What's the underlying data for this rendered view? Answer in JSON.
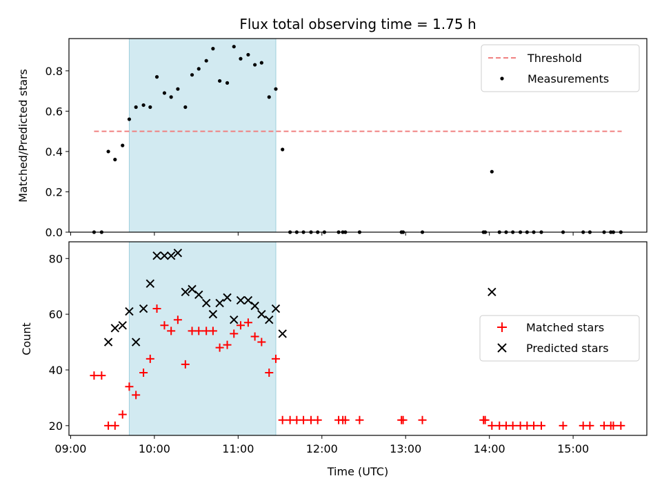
{
  "figure_title": "Flux total observing time = 1.75 h",
  "xlabel": "Time (UTC)",
  "x_ticks": [
    {
      "hours": 9,
      "label": "09:00"
    },
    {
      "hours": 10,
      "label": "10:00"
    },
    {
      "hours": 11,
      "label": "11:00"
    },
    {
      "hours": 12,
      "label": "12:00"
    },
    {
      "hours": 13,
      "label": "13:00"
    },
    {
      "hours": 14,
      "label": "14:00"
    },
    {
      "hours": 15,
      "label": "15:00"
    }
  ],
  "x_range_hours": [
    8.98,
    15.88
  ],
  "colors": {
    "threshold": "#f08080",
    "measurements": "#000000",
    "matched": "#ff0000",
    "predicted": "#000000",
    "highlight": "#add8e6"
  },
  "chart_data": [
    {
      "type": "scatter",
      "ylabel": "Matched/Predicted stars",
      "ylim": [
        0,
        0.96
      ],
      "y_ticks": [
        0.0,
        0.2,
        0.4,
        0.6,
        0.8
      ],
      "y_tick_labels": [
        "0.0",
        "0.2",
        "0.4",
        "0.6",
        "0.8"
      ],
      "highlight_span_hours": [
        9.7,
        11.45
      ],
      "legend_position": "top-right",
      "threshold": {
        "name": "Threshold",
        "y": 0.5,
        "x_start_hours": 9.28,
        "x_end_hours": 15.58
      },
      "series": [
        {
          "name": "Measurements",
          "x_hours": [
            9.28,
            9.37,
            9.45,
            9.53,
            9.62,
            9.7,
            9.78,
            9.87,
            9.95,
            10.03,
            10.12,
            10.2,
            10.28,
            10.37,
            10.45,
            10.53,
            10.62,
            10.7,
            10.78,
            10.87,
            10.95,
            11.03,
            11.12,
            11.2,
            11.28,
            11.37,
            11.45,
            11.53,
            11.62,
            11.7,
            11.78,
            11.87,
            11.95,
            12.03,
            12.2,
            12.25,
            12.28,
            12.45,
            12.95,
            12.97,
            13.2,
            13.93,
            13.95,
            14.03,
            14.12,
            14.2,
            14.28,
            14.37,
            14.45,
            14.53,
            14.62,
            14.88,
            15.12,
            15.2,
            15.37,
            15.45,
            15.48,
            15.57
          ],
          "y": [
            0.0,
            0.0,
            0.4,
            0.36,
            0.43,
            0.56,
            0.62,
            0.63,
            0.62,
            0.77,
            0.69,
            0.67,
            0.71,
            0.62,
            0.78,
            0.81,
            0.85,
            0.91,
            0.75,
            0.74,
            0.92,
            0.86,
            0.88,
            0.83,
            0.84,
            0.67,
            0.71,
            0.41,
            0.0,
            0.0,
            0.0,
            0.0,
            0.0,
            0.0,
            0.0,
            0.0,
            0.0,
            0.0,
            0.0,
            0.0,
            0.0,
            0.0,
            0.0,
            0.3,
            0.0,
            0.0,
            0.0,
            0.0,
            0.0,
            0.0,
            0.0,
            0.0,
            0.0,
            0.0,
            0.0,
            0.0,
            0.0,
            0.0
          ]
        }
      ]
    },
    {
      "type": "scatter",
      "ylabel": "Count",
      "ylim": [
        16.5,
        86
      ],
      "y_ticks": [
        20,
        40,
        60,
        80
      ],
      "y_tick_labels": [
        "20",
        "40",
        "60",
        "80"
      ],
      "highlight_span_hours": [
        9.7,
        11.45
      ],
      "legend_position": "center-right",
      "series": [
        {
          "name": "Matched stars",
          "marker": "plus",
          "x_hours": [
            9.28,
            9.37,
            9.45,
            9.53,
            9.62,
            9.7,
            9.78,
            9.87,
            9.95,
            10.03,
            10.12,
            10.2,
            10.28,
            10.37,
            10.45,
            10.53,
            10.62,
            10.7,
            10.78,
            10.87,
            10.95,
            11.03,
            11.12,
            11.2,
            11.28,
            11.37,
            11.45,
            11.53,
            11.62,
            11.7,
            11.78,
            11.87,
            11.95,
            12.2,
            12.25,
            12.28,
            12.45,
            12.95,
            12.97,
            13.2,
            13.93,
            13.95,
            14.03,
            14.12,
            14.2,
            14.28,
            14.37,
            14.45,
            14.53,
            14.62,
            14.88,
            15.12,
            15.2,
            15.37,
            15.45,
            15.48,
            15.57
          ],
          "y": [
            38,
            38,
            20,
            20,
            24,
            34,
            31,
            39,
            44,
            62,
            56,
            54,
            58,
            42,
            54,
            54,
            54,
            54,
            48,
            49,
            53,
            56,
            57,
            52,
            50,
            39,
            44,
            22,
            22,
            22,
            22,
            22,
            22,
            22,
            22,
            22,
            22,
            22,
            22,
            22,
            22,
            22,
            20,
            20,
            20,
            20,
            20,
            20,
            20,
            20,
            20,
            20,
            20,
            20,
            20,
            20,
            20
          ]
        },
        {
          "name": "Predicted stars",
          "marker": "x",
          "x_hours": [
            9.45,
            9.53,
            9.62,
            9.7,
            9.78,
            9.87,
            9.95,
            10.03,
            10.12,
            10.2,
            10.28,
            10.37,
            10.45,
            10.53,
            10.62,
            10.7,
            10.78,
            10.87,
            10.95,
            11.03,
            11.12,
            11.2,
            11.28,
            11.37,
            11.45,
            11.53,
            14.03
          ],
          "y": [
            50,
            55,
            56,
            61,
            50,
            62,
            71,
            81,
            81,
            81,
            82,
            68,
            69,
            67,
            64,
            60,
            64,
            66,
            58,
            65,
            65,
            63,
            60,
            58,
            62,
            53,
            68
          ]
        }
      ]
    }
  ]
}
